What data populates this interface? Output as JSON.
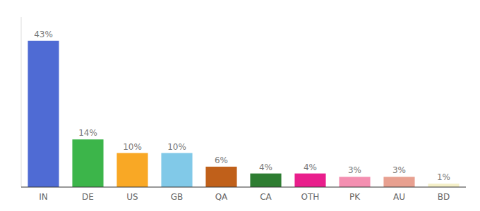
{
  "chart_data": {
    "type": "bar",
    "categories": [
      "IN",
      "DE",
      "US",
      "GB",
      "QA",
      "CA",
      "OTH",
      "PK",
      "AU",
      "BD"
    ],
    "values": [
      43,
      14,
      10,
      10,
      6,
      4,
      4,
      3,
      3,
      1
    ],
    "value_labels": [
      "43%",
      "14%",
      "10%",
      "10%",
      "6%",
      "4%",
      "4%",
      "3%",
      "3%",
      "1%"
    ],
    "colors": [
      "#4F6BD4",
      "#3CB54A",
      "#F9A825",
      "#81C9E8",
      "#C0601A",
      "#2E7D32",
      "#E91E8C",
      "#F48FB1",
      "#E8A090",
      "#F5F0C8"
    ],
    "ylim": [
      0,
      50
    ],
    "data_labels": true,
    "tick_labels": "x"
  }
}
